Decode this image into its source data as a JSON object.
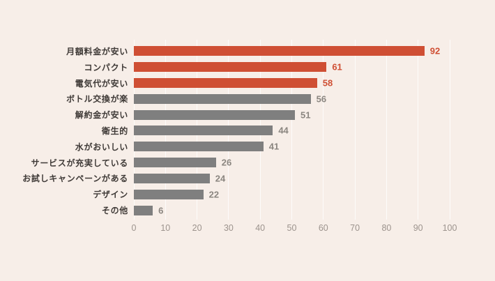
{
  "chart": {
    "background": "#f7eee8",
    "highlight_color": "#cf4f34",
    "bar_color": "#7f7f7f",
    "gridline_color": "rgba(255,255,255,0.78)",
    "label_color": "#3f3a37",
    "tick_color": "#9c938d",
    "value_color_default": "#8b8680"
  },
  "chart_data": {
    "type": "bar",
    "orientation": "horizontal",
    "title": "",
    "xlabel": "",
    "ylabel": "",
    "xlim": [
      0,
      100
    ],
    "x_ticks": [
      0,
      10,
      20,
      30,
      40,
      50,
      60,
      70,
      80,
      90,
      100
    ],
    "grid": true,
    "legend": false,
    "categories": [
      "月額料金が安い",
      "コンパクト",
      "電気代が安い",
      "ボトル交換が楽",
      "解約金が安い",
      "衛生的",
      "水がおいしい",
      "サービスが充実している",
      "お試しキャンペーンがある",
      "デザイン",
      "その他"
    ],
    "values": [
      92,
      61,
      58,
      56,
      51,
      44,
      41,
      26,
      24,
      22,
      6
    ],
    "highlighted": [
      true,
      true,
      true,
      false,
      false,
      false,
      false,
      false,
      false,
      false,
      false
    ]
  }
}
